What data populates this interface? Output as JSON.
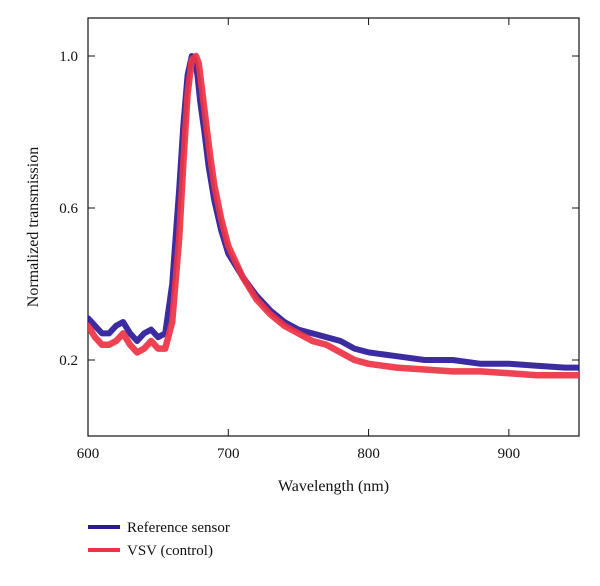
{
  "chart_data": {
    "type": "line",
    "xlabel": "Wavelength (nm)",
    "ylabel": "Normalized transmission",
    "xlim": [
      600,
      950
    ],
    "ylim": [
      0.0,
      1.1
    ],
    "xticks": [
      600,
      700,
      800,
      900
    ],
    "yticks": [
      0.2,
      0.6,
      1.0
    ],
    "xtick_labels": [
      "600",
      "700",
      "800",
      "900"
    ],
    "ytick_labels": [
      "0.2",
      "0.6",
      "1.0"
    ],
    "grid": false,
    "legend_position": "bottom-left",
    "series": [
      {
        "name": "Reference sensor",
        "color": "#2a1a9a",
        "x": [
          600,
          605,
          610,
          615,
          620,
          625,
          630,
          635,
          640,
          645,
          650,
          655,
          660,
          665,
          668,
          671,
          674,
          676,
          678,
          680,
          683,
          686,
          690,
          695,
          700,
          710,
          720,
          730,
          740,
          750,
          760,
          770,
          780,
          790,
          800,
          820,
          840,
          860,
          880,
          900,
          920,
          940,
          950
        ],
        "y": [
          0.31,
          0.29,
          0.27,
          0.27,
          0.29,
          0.3,
          0.27,
          0.25,
          0.27,
          0.28,
          0.26,
          0.27,
          0.4,
          0.65,
          0.82,
          0.95,
          1.0,
          0.99,
          0.95,
          0.88,
          0.8,
          0.71,
          0.62,
          0.54,
          0.48,
          0.42,
          0.37,
          0.33,
          0.3,
          0.28,
          0.27,
          0.26,
          0.25,
          0.23,
          0.22,
          0.21,
          0.2,
          0.2,
          0.19,
          0.19,
          0.185,
          0.18,
          0.18
        ]
      },
      {
        "name": "VSV (control)",
        "color": "#ee3344",
        "x": [
          600,
          605,
          610,
          615,
          620,
          625,
          630,
          635,
          640,
          645,
          650,
          655,
          660,
          665,
          668,
          671,
          674,
          677,
          679,
          681,
          684,
          687,
          690,
          695,
          700,
          710,
          720,
          730,
          740,
          750,
          760,
          770,
          780,
          790,
          800,
          820,
          840,
          860,
          880,
          900,
          920,
          940,
          950
        ],
        "y": [
          0.29,
          0.26,
          0.24,
          0.24,
          0.25,
          0.27,
          0.24,
          0.22,
          0.23,
          0.25,
          0.23,
          0.23,
          0.3,
          0.52,
          0.72,
          0.9,
          0.99,
          1.0,
          0.98,
          0.92,
          0.83,
          0.74,
          0.66,
          0.57,
          0.5,
          0.42,
          0.36,
          0.32,
          0.29,
          0.27,
          0.25,
          0.24,
          0.22,
          0.2,
          0.19,
          0.18,
          0.175,
          0.17,
          0.17,
          0.165,
          0.16,
          0.16,
          0.16
        ]
      }
    ]
  }
}
